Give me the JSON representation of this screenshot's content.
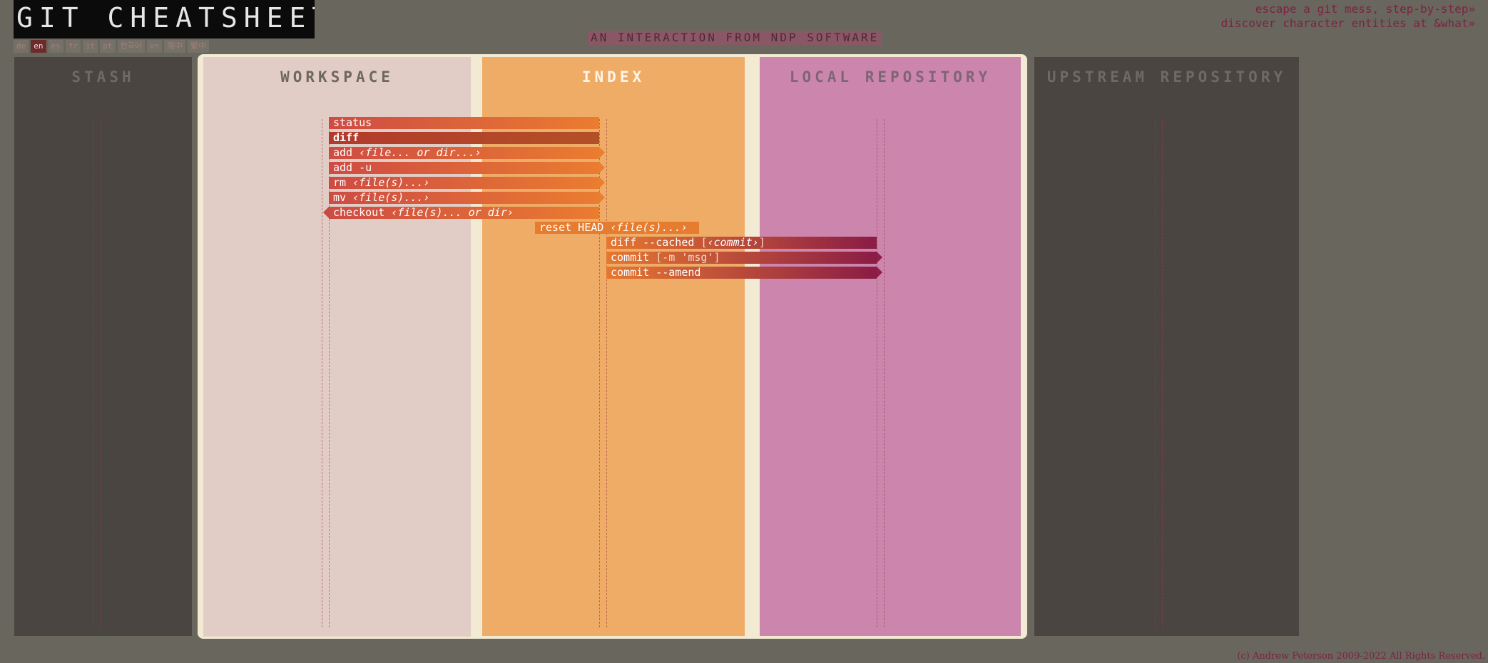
{
  "header": {
    "title": "GIT CHEATSHEET",
    "subtitle": "AN INTERACTION FROM NDP SOFTWARE",
    "links": [
      "escape a git mess, step-by-step»",
      "discover character entities at &what»"
    ]
  },
  "languages": [
    "de",
    "en",
    "es",
    "fr",
    "it",
    "pt",
    "한국어",
    "vn",
    "簡中",
    "繁中"
  ],
  "active_language": "en",
  "columns": {
    "stash": "STASH",
    "workspace": "WORKSPACE",
    "index": "INDEX",
    "local": "LOCAL REPOSITORY",
    "upstream": "UPSTREAM REPOSITORY"
  },
  "commands": [
    {
      "name": "status",
      "arg": "",
      "opt": ""
    },
    {
      "name": "diff",
      "arg": "",
      "opt": ""
    },
    {
      "name": "add ",
      "arg": "‹file... or dir...›",
      "opt": ""
    },
    {
      "name": "add -u",
      "arg": "",
      "opt": ""
    },
    {
      "name": "rm ",
      "arg": "‹file(s)...›",
      "opt": ""
    },
    {
      "name": "mv ",
      "arg": "‹file(s)...›",
      "opt": ""
    },
    {
      "name": "checkout ",
      "arg": "‹file(s)... or dir›",
      "opt": ""
    },
    {
      "name": "reset HEAD ",
      "arg": "‹file(s)...›",
      "opt": ""
    },
    {
      "name": "diff --cached ",
      "arg": "‹commit›",
      "opt": "[",
      "opt_end": "]"
    },
    {
      "name": "commit ",
      "arg": "",
      "opt": "[-m 'msg']"
    },
    {
      "name": "commit --amend",
      "arg": "",
      "opt": ""
    }
  ],
  "selected_command": "diff",
  "copyright": "(c) Andrew Peterson 2009-2022 All Rights Reserved.",
  "colors": {
    "workspace": "#e2cdc6",
    "index": "#efac67",
    "local": "#cc85ad",
    "stash": "#4a4541",
    "upstream": "#4a4541"
  }
}
